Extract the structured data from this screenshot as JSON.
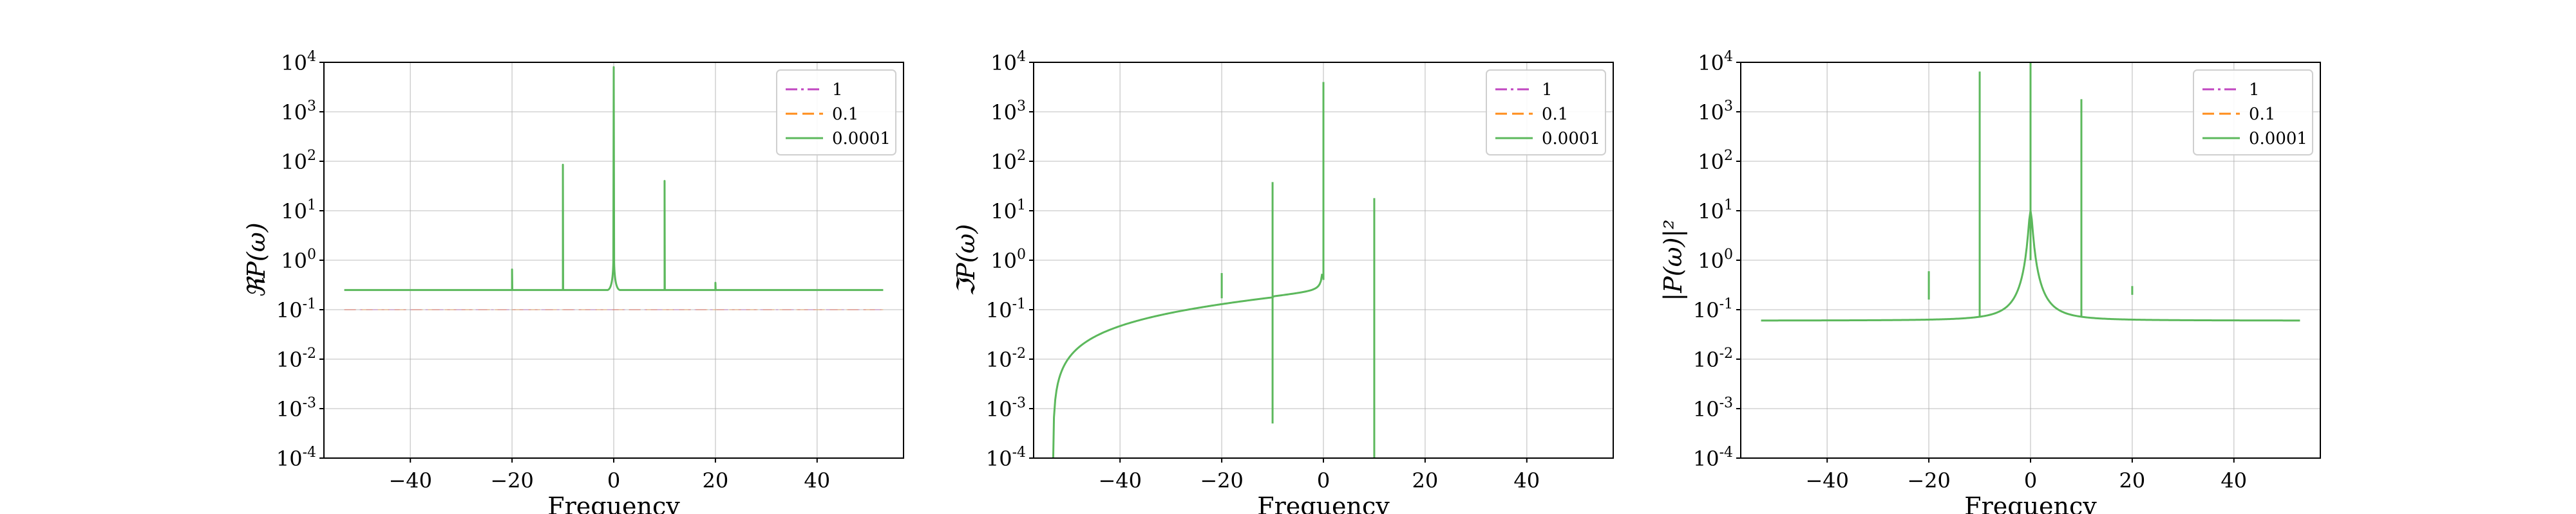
{
  "chart_data": [
    {
      "type": "line",
      "id": "real",
      "xlabel": "Frequency",
      "ylabel": "ℜP(ω)",
      "xlim": [
        -57,
        57
      ],
      "ylim": [
        0.0001,
        10000
      ],
      "yscale": "log",
      "xticks": [
        -40,
        -20,
        0,
        20,
        40
      ],
      "yticks": [
        0.0001,
        0.001,
        0.01,
        0.1,
        1,
        10,
        100,
        1000,
        10000
      ],
      "ytick_labels": [
        [
          "10",
          "-4"
        ],
        [
          "10",
          "-3"
        ],
        [
          "10",
          "-2"
        ],
        [
          "10",
          "-1"
        ],
        [
          "10",
          "0"
        ],
        [
          "10",
          "1"
        ],
        [
          "10",
          "2"
        ],
        [
          "10",
          "3"
        ],
        [
          "10",
          "4"
        ]
      ],
      "grid": true,
      "legend_position": "top-right",
      "series": [
        {
          "name": "1",
          "color": "#c146c1",
          "dash": "dashdot",
          "kind": "flat",
          "value": 0.1
        },
        {
          "name": "0.1",
          "color": "#ff8c1a",
          "dash": "dashed",
          "kind": "flat",
          "value": 0.1
        },
        {
          "name": "0.0001",
          "color": "#5cb85c",
          "dash": "solid",
          "kind": "real",
          "baseline": 0.25,
          "x_range": [
            -53,
            53
          ],
          "peaks": [
            {
              "x": -20,
              "y": 0.65
            },
            {
              "x": -10,
              "y": 85
            },
            {
              "x": 0,
              "y": 8000
            },
            {
              "x": 10,
              "y": 40
            },
            {
              "x": 20,
              "y": 0.35
            }
          ]
        }
      ]
    },
    {
      "type": "line",
      "id": "imag",
      "xlabel": "Frequency",
      "ylabel": "ℑP(ω)",
      "xlim": [
        -57,
        57
      ],
      "ylim": [
        0.0001,
        10000
      ],
      "yscale": "log",
      "xticks": [
        -40,
        -20,
        0,
        20,
        40
      ],
      "yticks": [
        0.0001,
        0.001,
        0.01,
        0.1,
        1,
        10,
        100,
        1000,
        10000
      ],
      "ytick_labels": [
        [
          "10",
          "-4"
        ],
        [
          "10",
          "-3"
        ],
        [
          "10",
          "-2"
        ],
        [
          "10",
          "-1"
        ],
        [
          "10",
          "0"
        ],
        [
          "10",
          "1"
        ],
        [
          "10",
          "2"
        ],
        [
          "10",
          "3"
        ],
        [
          "10",
          "4"
        ]
      ],
      "grid": true,
      "legend_position": "top-right",
      "series": [
        {
          "name": "1",
          "color": "#c146c1",
          "dash": "dashdot",
          "kind": "none"
        },
        {
          "name": "0.1",
          "color": "#ff8c1a",
          "dash": "dashed",
          "kind": "none"
        },
        {
          "name": "0.0001",
          "color": "#5cb85c",
          "dash": "solid",
          "kind": "imag",
          "x_range": [
            -53,
            53
          ],
          "spikes": [
            {
              "x": -20,
              "low": 0.17,
              "high": 0.55
            },
            {
              "x": -10,
              "low": 0.0005,
              "high": 38
            },
            {
              "x": 0,
              "low": 0.4,
              "high": 4000
            },
            {
              "x": 10,
              "low": 0.0001,
              "high": 18
            }
          ]
        }
      ]
    },
    {
      "type": "line",
      "id": "power",
      "xlabel": "Frequency",
      "ylabel": "|P(ω)|²",
      "xlim": [
        -57,
        57
      ],
      "ylim": [
        0.0001,
        10000
      ],
      "yscale": "log",
      "xticks": [
        -40,
        -20,
        0,
        20,
        40
      ],
      "yticks": [
        0.0001,
        0.001,
        0.01,
        0.1,
        1,
        10,
        100,
        1000,
        10000
      ],
      "ytick_labels": [
        [
          "10",
          "-4"
        ],
        [
          "10",
          "-3"
        ],
        [
          "10",
          "-2"
        ],
        [
          "10",
          "-1"
        ],
        [
          "10",
          "0"
        ],
        [
          "10",
          "1"
        ],
        [
          "10",
          "2"
        ],
        [
          "10",
          "3"
        ],
        [
          "10",
          "4"
        ]
      ],
      "grid": true,
      "legend_position": "top-right",
      "series": [
        {
          "name": "1",
          "color": "#c146c1",
          "dash": "dashdot",
          "kind": "none"
        },
        {
          "name": "0.1",
          "color": "#ff8c1a",
          "dash": "dashed",
          "kind": "none"
        },
        {
          "name": "0.0001",
          "color": "#5cb85c",
          "dash": "solid",
          "kind": "power",
          "x_range": [
            -53,
            53
          ],
          "spikes": [
            {
              "x": -20,
              "low": 0.16,
              "high": 0.6
            },
            {
              "x": -10,
              "low": 0.07,
              "high": 6500
            },
            {
              "x": 0,
              "low": 1,
              "high": 10000
            },
            {
              "x": 10,
              "low": 0.07,
              "high": 1800
            },
            {
              "x": 20,
              "low": 0.2,
              "high": 0.3
            }
          ]
        }
      ]
    }
  ]
}
